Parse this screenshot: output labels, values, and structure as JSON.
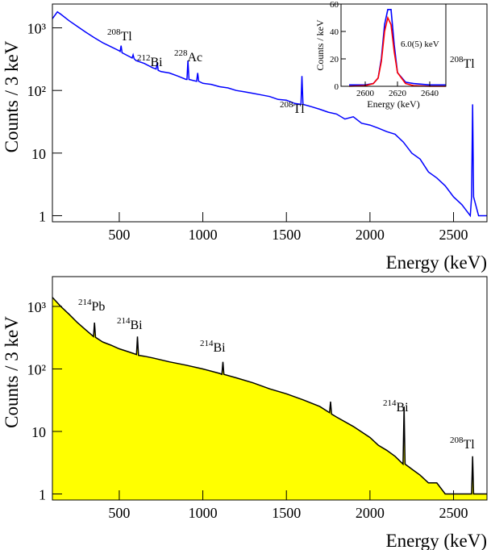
{
  "chart_data": [
    {
      "type": "line",
      "xlabel": "Energy (keV)",
      "ylabel": "Counts / 3 keV",
      "log_y": true,
      "xlim": [
        100,
        2700
      ],
      "ylim": [
        0.8,
        2400
      ],
      "xticks": [
        500,
        1000,
        1500,
        2000,
        2500
      ],
      "yticks": [
        1,
        10,
        {
          "value": 100,
          "label": "10²"
        },
        {
          "value": 1000,
          "label": "10³"
        }
      ],
      "series": [
        {
          "color": "#0000ff",
          "x": [
            100,
            130,
            150,
            200,
            250,
            300,
            350,
            400,
            450,
            500,
            505,
            511,
            517,
            550,
            577,
            583,
            589,
            600,
            650,
            700,
            721,
            727,
            733,
            750,
            800,
            850,
            900,
            905,
            911,
            917,
            963,
            969,
            975,
            1000,
            1050,
            1100,
            1150,
            1200,
            1250,
            1300,
            1350,
            1400,
            1450,
            1500,
            1550,
            1587,
            1593,
            1599,
            1650,
            1700,
            1750,
            1800,
            1850,
            1900,
            1950,
            2000,
            2050,
            2100,
            2150,
            2200,
            2250,
            2300,
            2350,
            2400,
            2450,
            2500,
            2550,
            2600,
            2608,
            2614,
            2620,
            2650,
            2700
          ],
          "values": [
            1400,
            1800,
            1650,
            1300,
            1050,
            850,
            700,
            580,
            500,
            430,
            420,
            520,
            400,
            360,
            330,
            370,
            320,
            300,
            270,
            230,
            220,
            280,
            210,
            200,
            190,
            170,
            150,
            150,
            300,
            150,
            140,
            190,
            140,
            130,
            125,
            115,
            110,
            100,
            95,
            90,
            85,
            80,
            72,
            70,
            62,
            60,
            170,
            60,
            55,
            50,
            45,
            42,
            35,
            38,
            30,
            28,
            25,
            22,
            20,
            15,
            10,
            8,
            5,
            4,
            3,
            2,
            1.5,
            1,
            2,
            60,
            2,
            1,
            1
          ]
        }
      ],
      "annotations": [
        {
          "mass": "208",
          "symbol": "Tl"
        },
        {
          "mass": "212",
          "symbol": "Bi"
        },
        {
          "mass": "228",
          "symbol": "Ac"
        },
        {
          "mass": "208",
          "symbol": "Tl"
        },
        {
          "mass": "208",
          "symbol": "Tl"
        }
      ]
    },
    {
      "type": "area",
      "xlabel": "Energy (keV)",
      "ylabel": "Counts / 3 keV",
      "log_y": true,
      "xlim": [
        100,
        2700
      ],
      "ylim": [
        0.8,
        3000
      ],
      "xticks": [
        500,
        1000,
        1500,
        2000,
        2500
      ],
      "yticks": [
        1,
        10,
        {
          "value": 100,
          "label": "10²"
        },
        {
          "value": 1000,
          "label": "10³"
        }
      ],
      "series": [
        {
          "color": "#000000",
          "fill": "#ffff00",
          "x": [
            100,
            150,
            200,
            250,
            300,
            346,
            352,
            358,
            400,
            450,
            500,
            550,
            603,
            609,
            615,
            650,
            700,
            800,
            900,
            1000,
            1100,
            1114,
            1120,
            1126,
            1200,
            1300,
            1400,
            1500,
            1600,
            1700,
            1758,
            1764,
            1770,
            1800,
            1900,
            2000,
            2050,
            2100,
            2150,
            2198,
            2204,
            2210,
            2250,
            2300,
            2350,
            2400,
            2450,
            2500,
            2550,
            2608,
            2614,
            2620,
            2650,
            2700
          ],
          "values": [
            1400,
            1000,
            750,
            550,
            420,
            330,
            550,
            320,
            270,
            240,
            210,
            190,
            170,
            330,
            165,
            160,
            150,
            130,
            115,
            100,
            85,
            82,
            130,
            82,
            72,
            60,
            48,
            40,
            32,
            25,
            20,
            30,
            19,
            17,
            12,
            8,
            6,
            5,
            4,
            3,
            25,
            3,
            2.5,
            2,
            1.5,
            1.5,
            1,
            1,
            1,
            1,
            4,
            1,
            1,
            1
          ]
        }
      ],
      "annotations": [
        {
          "mass": "214",
          "symbol": "Pb"
        },
        {
          "mass": "214",
          "symbol": "Bi"
        },
        {
          "mass": "214",
          "symbol": "Bi"
        },
        {
          "mass": "214",
          "symbol": "Bi"
        },
        {
          "mass": "208",
          "symbol": "Tl"
        }
      ]
    },
    {
      "type": "line",
      "xlabel": "Energy (keV)",
      "ylabel": "Counts / keV",
      "log_y": false,
      "xlim": [
        2585,
        2650
      ],
      "ylim": [
        0,
        60
      ],
      "xticks": [
        2600,
        2620,
        2640
      ],
      "yticks": [
        0,
        20,
        40,
        60
      ],
      "series": [
        {
          "color": "#0000ff",
          "x": [
            2590,
            2600,
            2605,
            2608,
            2610,
            2612,
            2614,
            2616,
            2618,
            2620,
            2625,
            2630,
            2640,
            2650
          ],
          "values": [
            1,
            1,
            2,
            6,
            20,
            45,
            56,
            56,
            30,
            10,
            3,
            2,
            1,
            1
          ]
        },
        {
          "color": "#ff0000",
          "x": [
            2590,
            2600,
            2605,
            2608,
            2610,
            2612,
            2614,
            2616,
            2618,
            2620,
            2625,
            2630,
            2640,
            2650
          ],
          "values": [
            0,
            0.5,
            2,
            6,
            18,
            40,
            50,
            45,
            25,
            10,
            2,
            0.5,
            0,
            0
          ]
        }
      ],
      "annotations": [
        {
          "text": "6.0(5) keV"
        }
      ]
    }
  ]
}
